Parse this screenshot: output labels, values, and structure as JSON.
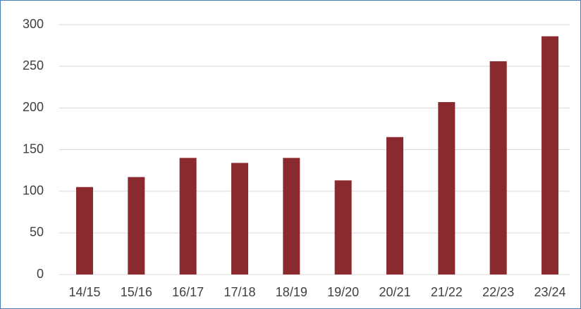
{
  "chart_data": {
    "type": "bar",
    "categories": [
      "14/15",
      "15/16",
      "16/17",
      "17/18",
      "18/19",
      "19/20",
      "20/21",
      "21/22",
      "22/23",
      "23/24"
    ],
    "values": [
      105,
      117,
      140,
      134,
      140,
      113,
      165,
      207,
      256,
      286
    ],
    "color": "#8b2a2e",
    "ylim": [
      0,
      300
    ],
    "yticks": [
      0,
      50,
      100,
      150,
      200,
      250,
      300
    ],
    "grid": true
  }
}
